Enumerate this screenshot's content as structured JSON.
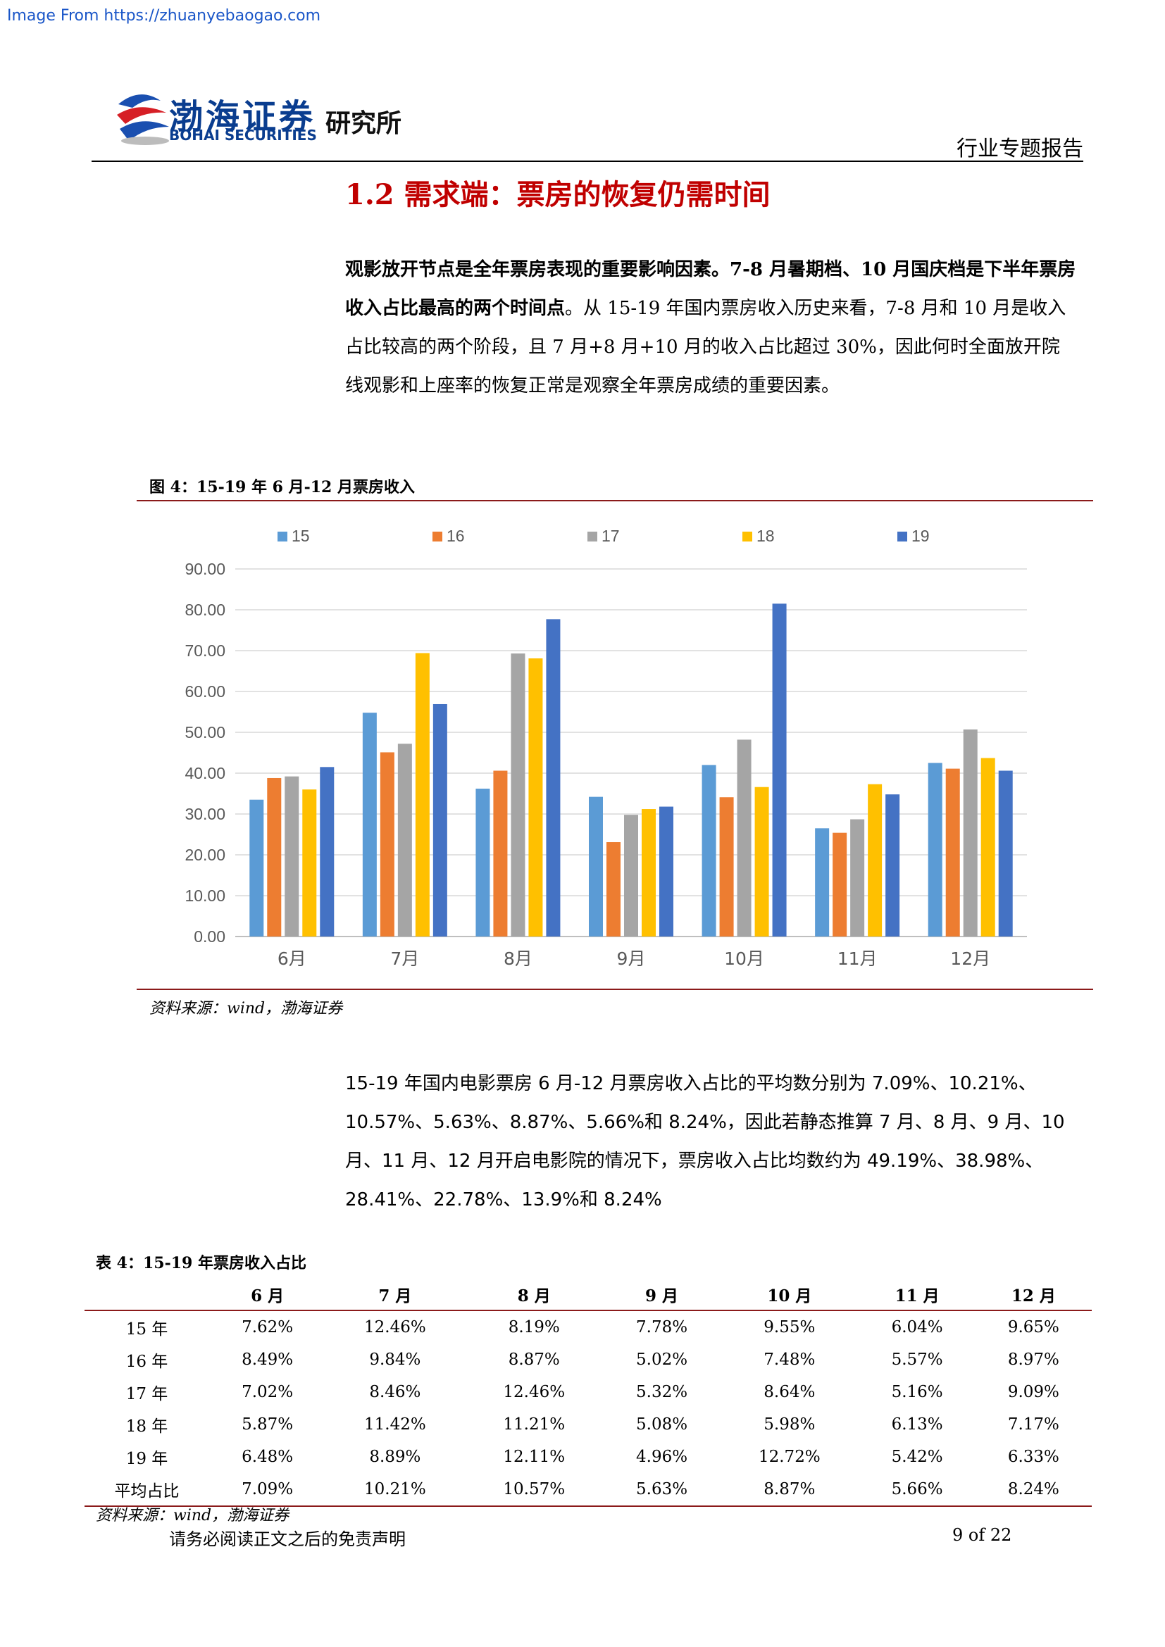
{
  "watermark": "Image From https://zhuanyebaogao.com",
  "header": {
    "company_cn": "渤海证券",
    "company_en": "BOHAI SECURITIES",
    "institute": "研究所",
    "report_type": "行业专题报告"
  },
  "section_title": "1.2 需求端：票房的恢复仍需时间",
  "para1": {
    "bold1": "观影放开节点是全年票房表现的重要影响因素。7-8 月暑期档、10 月国庆档是下半年票房收入占比最高的两个时间点",
    "normal1": "。从 15-19 年国内票房收入历史来看，7-8 月和 10 月是收入占比较高的两个阶段，且 7 月+8 月+10 月的收入占比超过 30%，因此何时全面放开院线观影和上座率的恢复正常是观察全年票房成绩的重要因素。"
  },
  "figure": {
    "title": "图 4：15-19 年 6 月-12 月票房收入",
    "source": "资料来源：wind，渤海证券"
  },
  "chart_data": {
    "type": "bar",
    "categories": [
      "6月",
      "7月",
      "8月",
      "9月",
      "10月",
      "11月",
      "12月"
    ],
    "series": [
      {
        "name": "15",
        "color": "#5b9bd5",
        "values": [
          33.5,
          54.8,
          36.2,
          34.2,
          42.0,
          26.5,
          42.5
        ]
      },
      {
        "name": "16",
        "color": "#ed7d31",
        "values": [
          38.8,
          45.1,
          40.6,
          23.1,
          34.1,
          25.4,
          41.1
        ]
      },
      {
        "name": "17",
        "color": "#a5a5a5",
        "values": [
          39.2,
          47.2,
          69.3,
          29.8,
          48.2,
          28.7,
          50.7
        ]
      },
      {
        "name": "18",
        "color": "#ffc000",
        "values": [
          36.0,
          69.4,
          68.1,
          31.2,
          36.6,
          37.3,
          43.7
        ]
      },
      {
        "name": "19",
        "color": "#4472c4",
        "values": [
          41.5,
          56.9,
          77.7,
          31.8,
          81.5,
          34.8,
          40.6
        ]
      }
    ],
    "yticks": [
      "0.00",
      "10.00",
      "20.00",
      "30.00",
      "40.00",
      "50.00",
      "60.00",
      "70.00",
      "80.00",
      "90.00"
    ],
    "ylim": [
      0,
      90
    ],
    "legend_position": "top",
    "grid": true
  },
  "para2": "15-19 年国内电影票房 6 月-12 月票房收入占比的平均数分别为 7.09%、10.21%、10.57%、5.63%、8.87%、5.66%和 8.24%，因此若静态推算 7 月、8 月、9 月、10 月、11 月、12 月开启电影院的情况下，票房收入占比均数约为 49.19%、38.98%、28.41%、22.78%、13.9%和 8.24%",
  "table": {
    "title": "表 4：15-19 年票房收入占比",
    "headers": [
      "",
      "6 月",
      "7 月",
      "8 月",
      "9 月",
      "10 月",
      "11 月",
      "12 月"
    ],
    "rows": [
      [
        "15 年",
        "7.62%",
        "12.46%",
        "8.19%",
        "7.78%",
        "9.55%",
        "6.04%",
        "9.65%"
      ],
      [
        "16 年",
        "8.49%",
        "9.84%",
        "8.87%",
        "5.02%",
        "7.48%",
        "5.57%",
        "8.97%"
      ],
      [
        "17 年",
        "7.02%",
        "8.46%",
        "12.46%",
        "5.32%",
        "8.64%",
        "5.16%",
        "9.09%"
      ],
      [
        "18 年",
        "5.87%",
        "11.42%",
        "11.21%",
        "5.08%",
        "5.98%",
        "6.13%",
        "7.17%"
      ],
      [
        "19 年",
        "6.48%",
        "8.89%",
        "12.11%",
        "4.96%",
        "12.72%",
        "5.42%",
        "6.33%"
      ],
      [
        "平均占比",
        "7.09%",
        "10.21%",
        "10.57%",
        "5.63%",
        "8.87%",
        "5.66%",
        "8.24%"
      ]
    ],
    "source": "资料来源：wind，渤海证券"
  },
  "footer": {
    "disclaimer": "请务必阅读正文之后的免责声明",
    "page": "9 of 22"
  }
}
